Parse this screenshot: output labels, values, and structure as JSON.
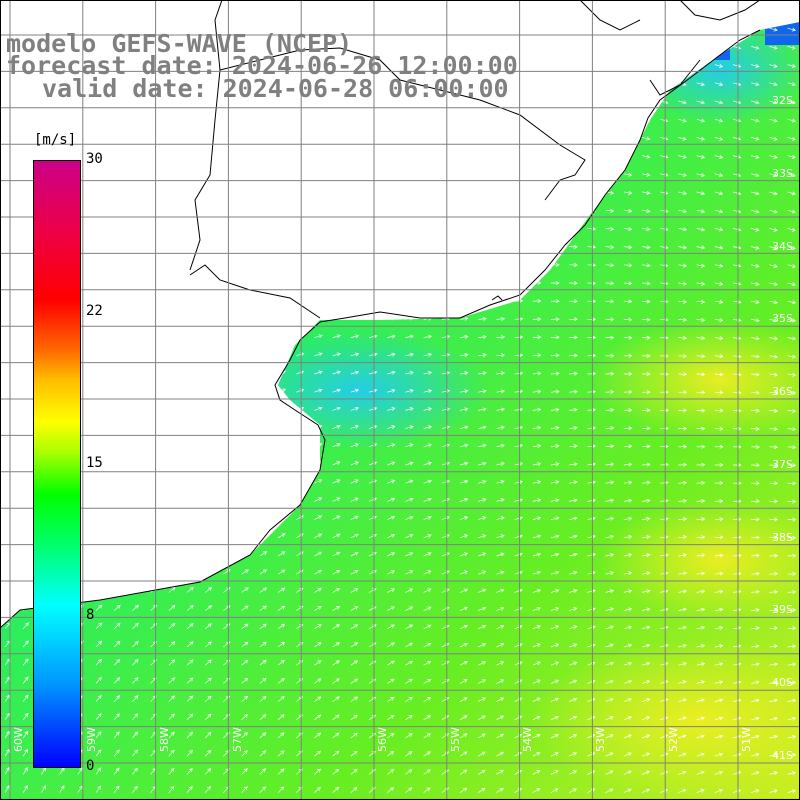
{
  "header": {
    "line1": "modelo GEFS-WAVE (NCEP)",
    "line2": "forecast date: 2024-06-26 12:00:00",
    "line3": "valid date: 2024-06-28 06:00:00"
  },
  "colorbar": {
    "unit": "[m/s]",
    "ticks": [
      "30",
      "22",
      "15",
      "8",
      "0"
    ]
  },
  "lat_labels": [
    "32S",
    "33S",
    "34S",
    "35S",
    "36S",
    "37S",
    "38S",
    "39S",
    "40S",
    "41S"
  ],
  "lon_labels": [
    "60W",
    "59W",
    "58W",
    "57W",
    "56W",
    "55W",
    "54W",
    "53W",
    "52W",
    "51W"
  ],
  "colors": {
    "land": "#ffffff",
    "coast": "#000000",
    "grid": "#808080",
    "arrows": "#ffffff"
  }
}
